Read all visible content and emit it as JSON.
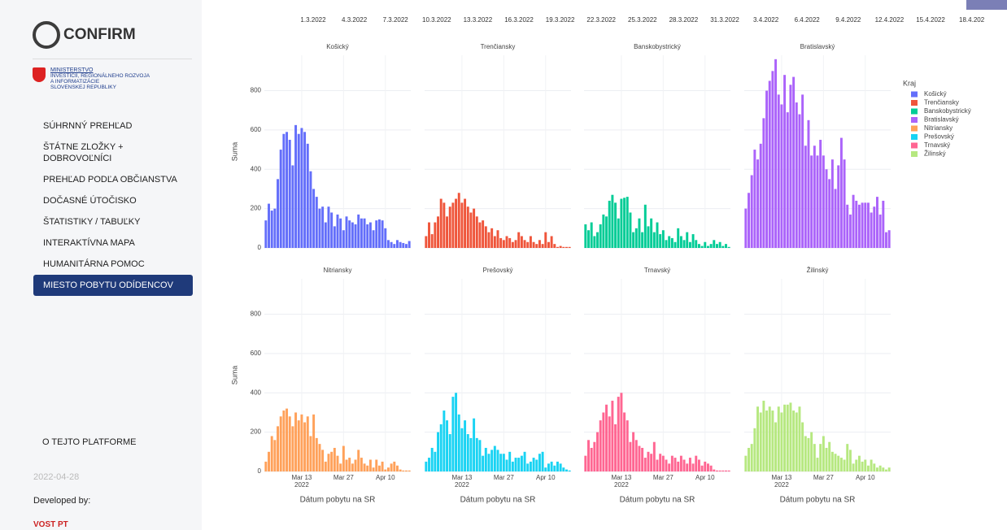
{
  "sidebar": {
    "logo": "CONFIRM",
    "ministry": [
      "MINISTERSTVO",
      "INVESTÍCIÍ, REGIONÁLNEHO ROZVOJA",
      "A INFORMATIZÁCIE",
      "SLOVENSKEJ REPUBLIKY"
    ],
    "menu": [
      "SÚHRNNÝ PREHĽAD",
      "ŠTÁTNE ZLOŽKY + DOBROVOĽNÍCI",
      "PREHĽAD PODĽA OBČIANSTVA",
      "DOČASNÉ ÚTOČISKO",
      "ŠTATISTIKY / TABUĽKY",
      "INTERAKTÍVNA MAPA",
      "HUMANITÁRNA POMOC",
      "MIESTO POBYTU ODÍDENCOV"
    ],
    "active_item": 7,
    "about": "O TEJTO PLATFORME",
    "date": "2022-04-28",
    "developed_by": "Developed by:",
    "developer": "VOST PT"
  },
  "slider": {
    "labels": [
      "1.3.2022",
      "4.3.2022",
      "7.3.2022",
      "10.3.2022",
      "13.3.2022",
      "16.3.2022",
      "19.3.2022",
      "22.3.2022",
      "25.3.2022",
      "28.3.2022",
      "31.3.2022",
      "3.4.2022",
      "6.4.2022",
      "9.4.2022",
      "12.4.2022",
      "15.4.2022",
      "18.4.202"
    ]
  },
  "chart_data": {
    "type": "bar",
    "y_label": "Suma",
    "x_label": "Dátum pobytu na SR",
    "legend_title": "Kraj",
    "x": [
      "2022-03-01",
      "2022-03-02",
      "2022-03-03",
      "2022-03-04",
      "2022-03-05",
      "2022-03-06",
      "2022-03-07",
      "2022-03-08",
      "2022-03-09",
      "2022-03-10",
      "2022-03-11",
      "2022-03-12",
      "2022-03-13",
      "2022-03-14",
      "2022-03-15",
      "2022-03-16",
      "2022-03-17",
      "2022-03-18",
      "2022-03-19",
      "2022-03-20",
      "2022-03-21",
      "2022-03-22",
      "2022-03-23",
      "2022-03-24",
      "2022-03-25",
      "2022-03-26",
      "2022-03-27",
      "2022-03-28",
      "2022-03-29",
      "2022-03-30",
      "2022-03-31",
      "2022-04-01",
      "2022-04-02",
      "2022-04-03",
      "2022-04-04",
      "2022-04-05",
      "2022-04-06",
      "2022-04-07",
      "2022-04-08",
      "2022-04-09",
      "2022-04-10",
      "2022-04-11",
      "2022-04-12",
      "2022-04-13",
      "2022-04-14",
      "2022-04-15",
      "2022-04-16",
      "2022-04-17",
      "2022-04-18"
    ],
    "xticks": [
      {
        "value": "2022-03-13",
        "label": "Mar 13\n2022"
      },
      {
        "value": "2022-03-27",
        "label": "Mar 27"
      },
      {
        "value": "2022-04-10",
        "label": "Apr 10"
      }
    ],
    "ylim": [
      0,
      980
    ],
    "yticks": [
      0,
      200,
      400,
      600,
      800
    ],
    "grid": true,
    "series": [
      {
        "name": "Košický",
        "color": "#636efa",
        "values": [
          140,
          225,
          190,
          200,
          350,
          500,
          580,
          590,
          550,
          420,
          625,
          580,
          610,
          590,
          530,
          390,
          300,
          260,
          200,
          210,
          130,
          210,
          180,
          110,
          170,
          150,
          90,
          160,
          140,
          130,
          120,
          170,
          150,
          150,
          120,
          130,
          90,
          140,
          145,
          140,
          100,
          40,
          30,
          20,
          40,
          30,
          25,
          20,
          35
        ]
      },
      {
        "name": "Trenčiansky",
        "color": "#ef553b",
        "values": [
          60,
          130,
          70,
          130,
          160,
          250,
          230,
          160,
          210,
          230,
          250,
          280,
          230,
          250,
          210,
          180,
          200,
          160,
          130,
          140,
          110,
          80,
          100,
          60,
          90,
          50,
          40,
          60,
          50,
          30,
          40,
          80,
          60,
          40,
          30,
          60,
          30,
          20,
          40,
          20,
          80,
          30,
          60,
          20,
          5,
          10,
          5,
          5,
          5
        ]
      },
      {
        "name": "Banskobystrický",
        "color": "#00cc96",
        "values": [
          120,
          90,
          130,
          60,
          80,
          120,
          170,
          160,
          240,
          270,
          230,
          150,
          250,
          255,
          260,
          180,
          80,
          100,
          150,
          80,
          220,
          110,
          150,
          80,
          130,
          70,
          90,
          40,
          60,
          50,
          30,
          100,
          60,
          40,
          80,
          30,
          70,
          40,
          20,
          10,
          30,
          10,
          20,
          40,
          20,
          30,
          10,
          20,
          5
        ]
      },
      {
        "name": "Bratislavský",
        "color": "#ab63fa",
        "values": [
          200,
          280,
          370,
          500,
          450,
          530,
          660,
          800,
          850,
          900,
          960,
          780,
          730,
          880,
          690,
          830,
          870,
          740,
          680,
          780,
          520,
          650,
          470,
          520,
          470,
          550,
          470,
          400,
          350,
          450,
          300,
          420,
          560,
          450,
          220,
          170,
          270,
          240,
          220,
          230,
          230,
          230,
          180,
          210,
          260,
          170,
          240,
          80,
          90
        ]
      },
      {
        "name": "Nitriansky",
        "color": "#ffa15a",
        "values": [
          50,
          100,
          180,
          160,
          230,
          280,
          310,
          320,
          280,
          230,
          300,
          260,
          290,
          250,
          280,
          180,
          290,
          170,
          140,
          110,
          50,
          90,
          100,
          120,
          80,
          40,
          130,
          60,
          70,
          40,
          60,
          110,
          70,
          40,
          30,
          60,
          20,
          60,
          30,
          50,
          10,
          20,
          40,
          50,
          30,
          10,
          5,
          5,
          5
        ]
      },
      {
        "name": "Prešovský",
        "color": "#19d3f3",
        "values": [
          50,
          70,
          120,
          100,
          200,
          240,
          310,
          260,
          190,
          380,
          400,
          290,
          220,
          260,
          190,
          170,
          270,
          170,
          160,
          80,
          120,
          90,
          110,
          130,
          110,
          90,
          90,
          60,
          100,
          50,
          70,
          70,
          80,
          100,
          40,
          50,
          70,
          60,
          90,
          100,
          20,
          40,
          50,
          30,
          50,
          40,
          20,
          10,
          5
        ]
      },
      {
        "name": "Trnavský",
        "color": "#ff6692",
        "values": [
          80,
          160,
          120,
          150,
          200,
          260,
          300,
          340,
          280,
          360,
          240,
          380,
          400,
          300,
          260,
          150,
          200,
          160,
          130,
          120,
          70,
          100,
          90,
          150,
          60,
          90,
          80,
          60,
          40,
          80,
          70,
          50,
          80,
          60,
          40,
          70,
          40,
          80,
          60,
          30,
          50,
          40,
          30,
          10,
          5,
          5,
          5,
          5,
          5
        ]
      },
      {
        "name": "Žilinský",
        "color": "#b6e880",
        "values": [
          80,
          120,
          140,
          220,
          330,
          300,
          360,
          310,
          330,
          310,
          250,
          330,
          300,
          340,
          340,
          350,
          310,
          300,
          330,
          250,
          180,
          170,
          200,
          140,
          70,
          140,
          180,
          120,
          150,
          100,
          90,
          80,
          70,
          60,
          140,
          110,
          40,
          60,
          80,
          50,
          60,
          30,
          60,
          40,
          20,
          30,
          20,
          10,
          20
        ]
      }
    ]
  }
}
